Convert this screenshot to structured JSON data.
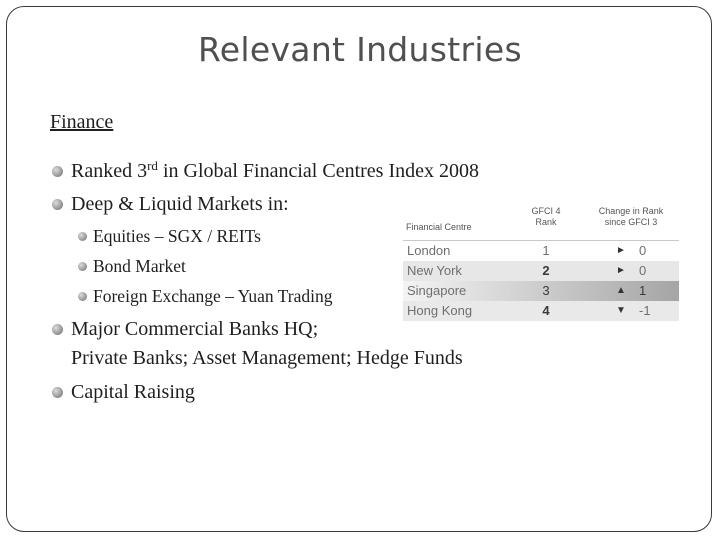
{
  "slide": {
    "title": "Relevant Industries",
    "subhead": "Finance",
    "bullets": [
      {
        "pre": "Ranked 3",
        "sup": "rd",
        "post": " in Global Financial Centres Index 2008"
      },
      {
        "text": "Deep & Liquid Markets in:"
      }
    ],
    "sub_bullets": [
      "Equities – SGX / REITs",
      "Bond Market",
      "Foreign Exchange – Yuan Trading"
    ],
    "bullets_after": [
      {
        "line1": "Major Commercial Banks HQ;",
        "line2": "Private Banks; Asset Management; Hedge Funds"
      },
      {
        "text": "Capital Raising"
      }
    ]
  },
  "gfci_table": {
    "headers": {
      "centre": "Financial Centre",
      "rank_line1": "GFCI 4",
      "rank_line2": "Rank",
      "change_line1": "Change in Rank",
      "change_line2": "since GFCI 3"
    },
    "rows": [
      {
        "name": "London",
        "rank": "1",
        "arrow": "►",
        "change": "0"
      },
      {
        "name": "New York",
        "rank": "2",
        "arrow": "►",
        "change": "0"
      },
      {
        "name": "Singapore",
        "rank": "3",
        "arrow": "▲",
        "change": "1"
      },
      {
        "name": "Hong Kong",
        "rank": "4",
        "arrow": "▼",
        "change": "-1"
      }
    ]
  }
}
